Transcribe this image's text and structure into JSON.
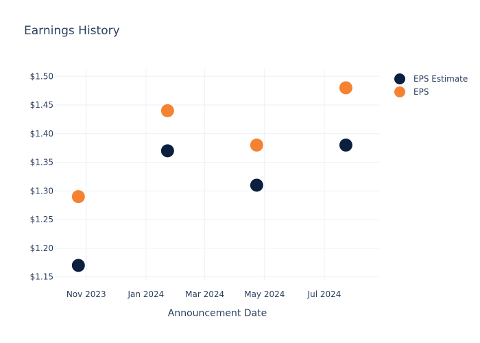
{
  "chart_data": {
    "type": "scatter",
    "title": "Earnings History",
    "xlabel": "Announcement Date",
    "ylabel": "",
    "x_ticks": [
      {
        "date": "2023-11-01",
        "label": "Nov 2023"
      },
      {
        "date": "2024-01-01",
        "label": "Jan 2024"
      },
      {
        "date": "2024-03-01",
        "label": "Mar 2024"
      },
      {
        "date": "2024-05-01",
        "label": "May 2024"
      },
      {
        "date": "2024-07-01",
        "label": "Jul 2024"
      }
    ],
    "xlim": [
      "2023-09-30",
      "2024-08-26"
    ],
    "y_ticks": [
      1.15,
      1.2,
      1.25,
      1.3,
      1.35,
      1.4,
      1.45,
      1.5
    ],
    "y_tick_prefix": "$",
    "ylim": [
      1.1435,
      1.5135
    ],
    "grid": true,
    "legend_position": "top-right",
    "series": [
      {
        "name": "EPS Estimate",
        "color": "#0b1f3f",
        "x": [
          "2023-10-24",
          "2024-01-23",
          "2024-04-23",
          "2024-07-23"
        ],
        "y": [
          1.17,
          1.37,
          1.31,
          1.38
        ]
      },
      {
        "name": "EPS",
        "color": "#f58231",
        "x": [
          "2023-10-24",
          "2024-01-23",
          "2024-04-23",
          "2024-07-23"
        ],
        "y": [
          1.29,
          1.44,
          1.38,
          1.48
        ]
      }
    ]
  }
}
